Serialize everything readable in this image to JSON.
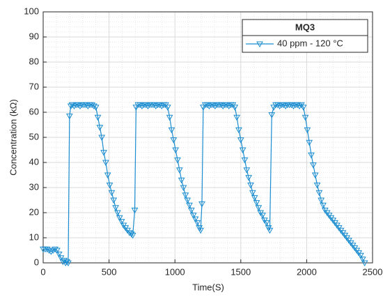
{
  "chart_data": {
    "type": "line",
    "xlabel": "Time(S)",
    "ylabel": "Concentration (kΩ)",
    "legend_title": "MQ3",
    "legend": "upper right",
    "grid": true,
    "minor_grid": true,
    "marker": "triangle-down",
    "xlim": [
      0,
      2500
    ],
    "xticks": [
      0,
      500,
      1000,
      1500,
      2000,
      2500
    ],
    "ylim": [
      0,
      100
    ],
    "yticks": [
      0,
      10,
      20,
      30,
      40,
      50,
      60,
      70,
      80,
      90,
      100
    ],
    "x": [
      0,
      15,
      30,
      45,
      60,
      75,
      90,
      105,
      120,
      135,
      150,
      160,
      170,
      180,
      190,
      200,
      210,
      220,
      235,
      250,
      265,
      280,
      295,
      310,
      325,
      340,
      355,
      370,
      385,
      400,
      415,
      430,
      445,
      460,
      475,
      490,
      505,
      520,
      535,
      550,
      565,
      580,
      595,
      610,
      625,
      640,
      655,
      670,
      680,
      695,
      705,
      720,
      735,
      750,
      765,
      780,
      795,
      810,
      825,
      840,
      855,
      870,
      885,
      900,
      915,
      930,
      945,
      960,
      975,
      990,
      1005,
      1020,
      1035,
      1050,
      1065,
      1080,
      1095,
      1110,
      1125,
      1140,
      1155,
      1170,
      1185,
      1195,
      1205,
      1215,
      1230,
      1245,
      1260,
      1275,
      1290,
      1305,
      1320,
      1335,
      1350,
      1365,
      1380,
      1395,
      1410,
      1425,
      1440,
      1455,
      1470,
      1485,
      1500,
      1515,
      1530,
      1545,
      1560,
      1575,
      1590,
      1605,
      1620,
      1635,
      1650,
      1665,
      1680,
      1695,
      1710,
      1720,
      1735,
      1750,
      1765,
      1780,
      1795,
      1810,
      1825,
      1840,
      1855,
      1870,
      1885,
      1900,
      1915,
      1930,
      1945,
      1960,
      1975,
      1990,
      2005,
      2020,
      2035,
      2050,
      2065,
      2080,
      2095,
      2110,
      2125,
      2140,
      2155,
      2170,
      2185,
      2200,
      2215,
      2230,
      2245,
      2260,
      2275,
      2290,
      2305,
      2320,
      2335,
      2350,
      2365,
      2380,
      2395,
      2410,
      2425,
      2440
    ],
    "series": [
      {
        "name": "40 ppm - 120 °C",
        "color": "#1a8ccf",
        "values": [
          5.5,
          5.5,
          5.5,
          5,
          4.5,
          5,
          5.5,
          5,
          3.5,
          2,
          0.5,
          1,
          0,
          0.5,
          0,
          58.5,
          62.5,
          63,
          62.5,
          63,
          63,
          62.5,
          63,
          63,
          63,
          62.5,
          63,
          63,
          62.5,
          62,
          58,
          54,
          50,
          44,
          40,
          35,
          31,
          28,
          25,
          22,
          20,
          18,
          16.5,
          15,
          14,
          13,
          12,
          11.5,
          11,
          21,
          62,
          63,
          63,
          62.5,
          63,
          63,
          62.5,
          63,
          63,
          63,
          62.5,
          63,
          63,
          62.5,
          63,
          63,
          62,
          58,
          53,
          49,
          45,
          41,
          37,
          33,
          30,
          27,
          25,
          23,
          21,
          19,
          17.5,
          16,
          14,
          13,
          23.5,
          62,
          63,
          63,
          62.5,
          63,
          63,
          62.5,
          63,
          63,
          63,
          62.5,
          63,
          63,
          62.5,
          63,
          63,
          62,
          58,
          53,
          49,
          45,
          41,
          37,
          34,
          31,
          28,
          26,
          24,
          22,
          20,
          19,
          17,
          16,
          14,
          13,
          59,
          62,
          63,
          63,
          62.5,
          63,
          63,
          62.5,
          63,
          63,
          63,
          62.5,
          63,
          63,
          62.5,
          63,
          62,
          58,
          53,
          48,
          43,
          39,
          35,
          31,
          28,
          25,
          23,
          21,
          20,
          19,
          18,
          17,
          16,
          15,
          14,
          13,
          12,
          11,
          10,
          9,
          8,
          7,
          6,
          5,
          4,
          3,
          1.5,
          0
        ]
      }
    ]
  }
}
